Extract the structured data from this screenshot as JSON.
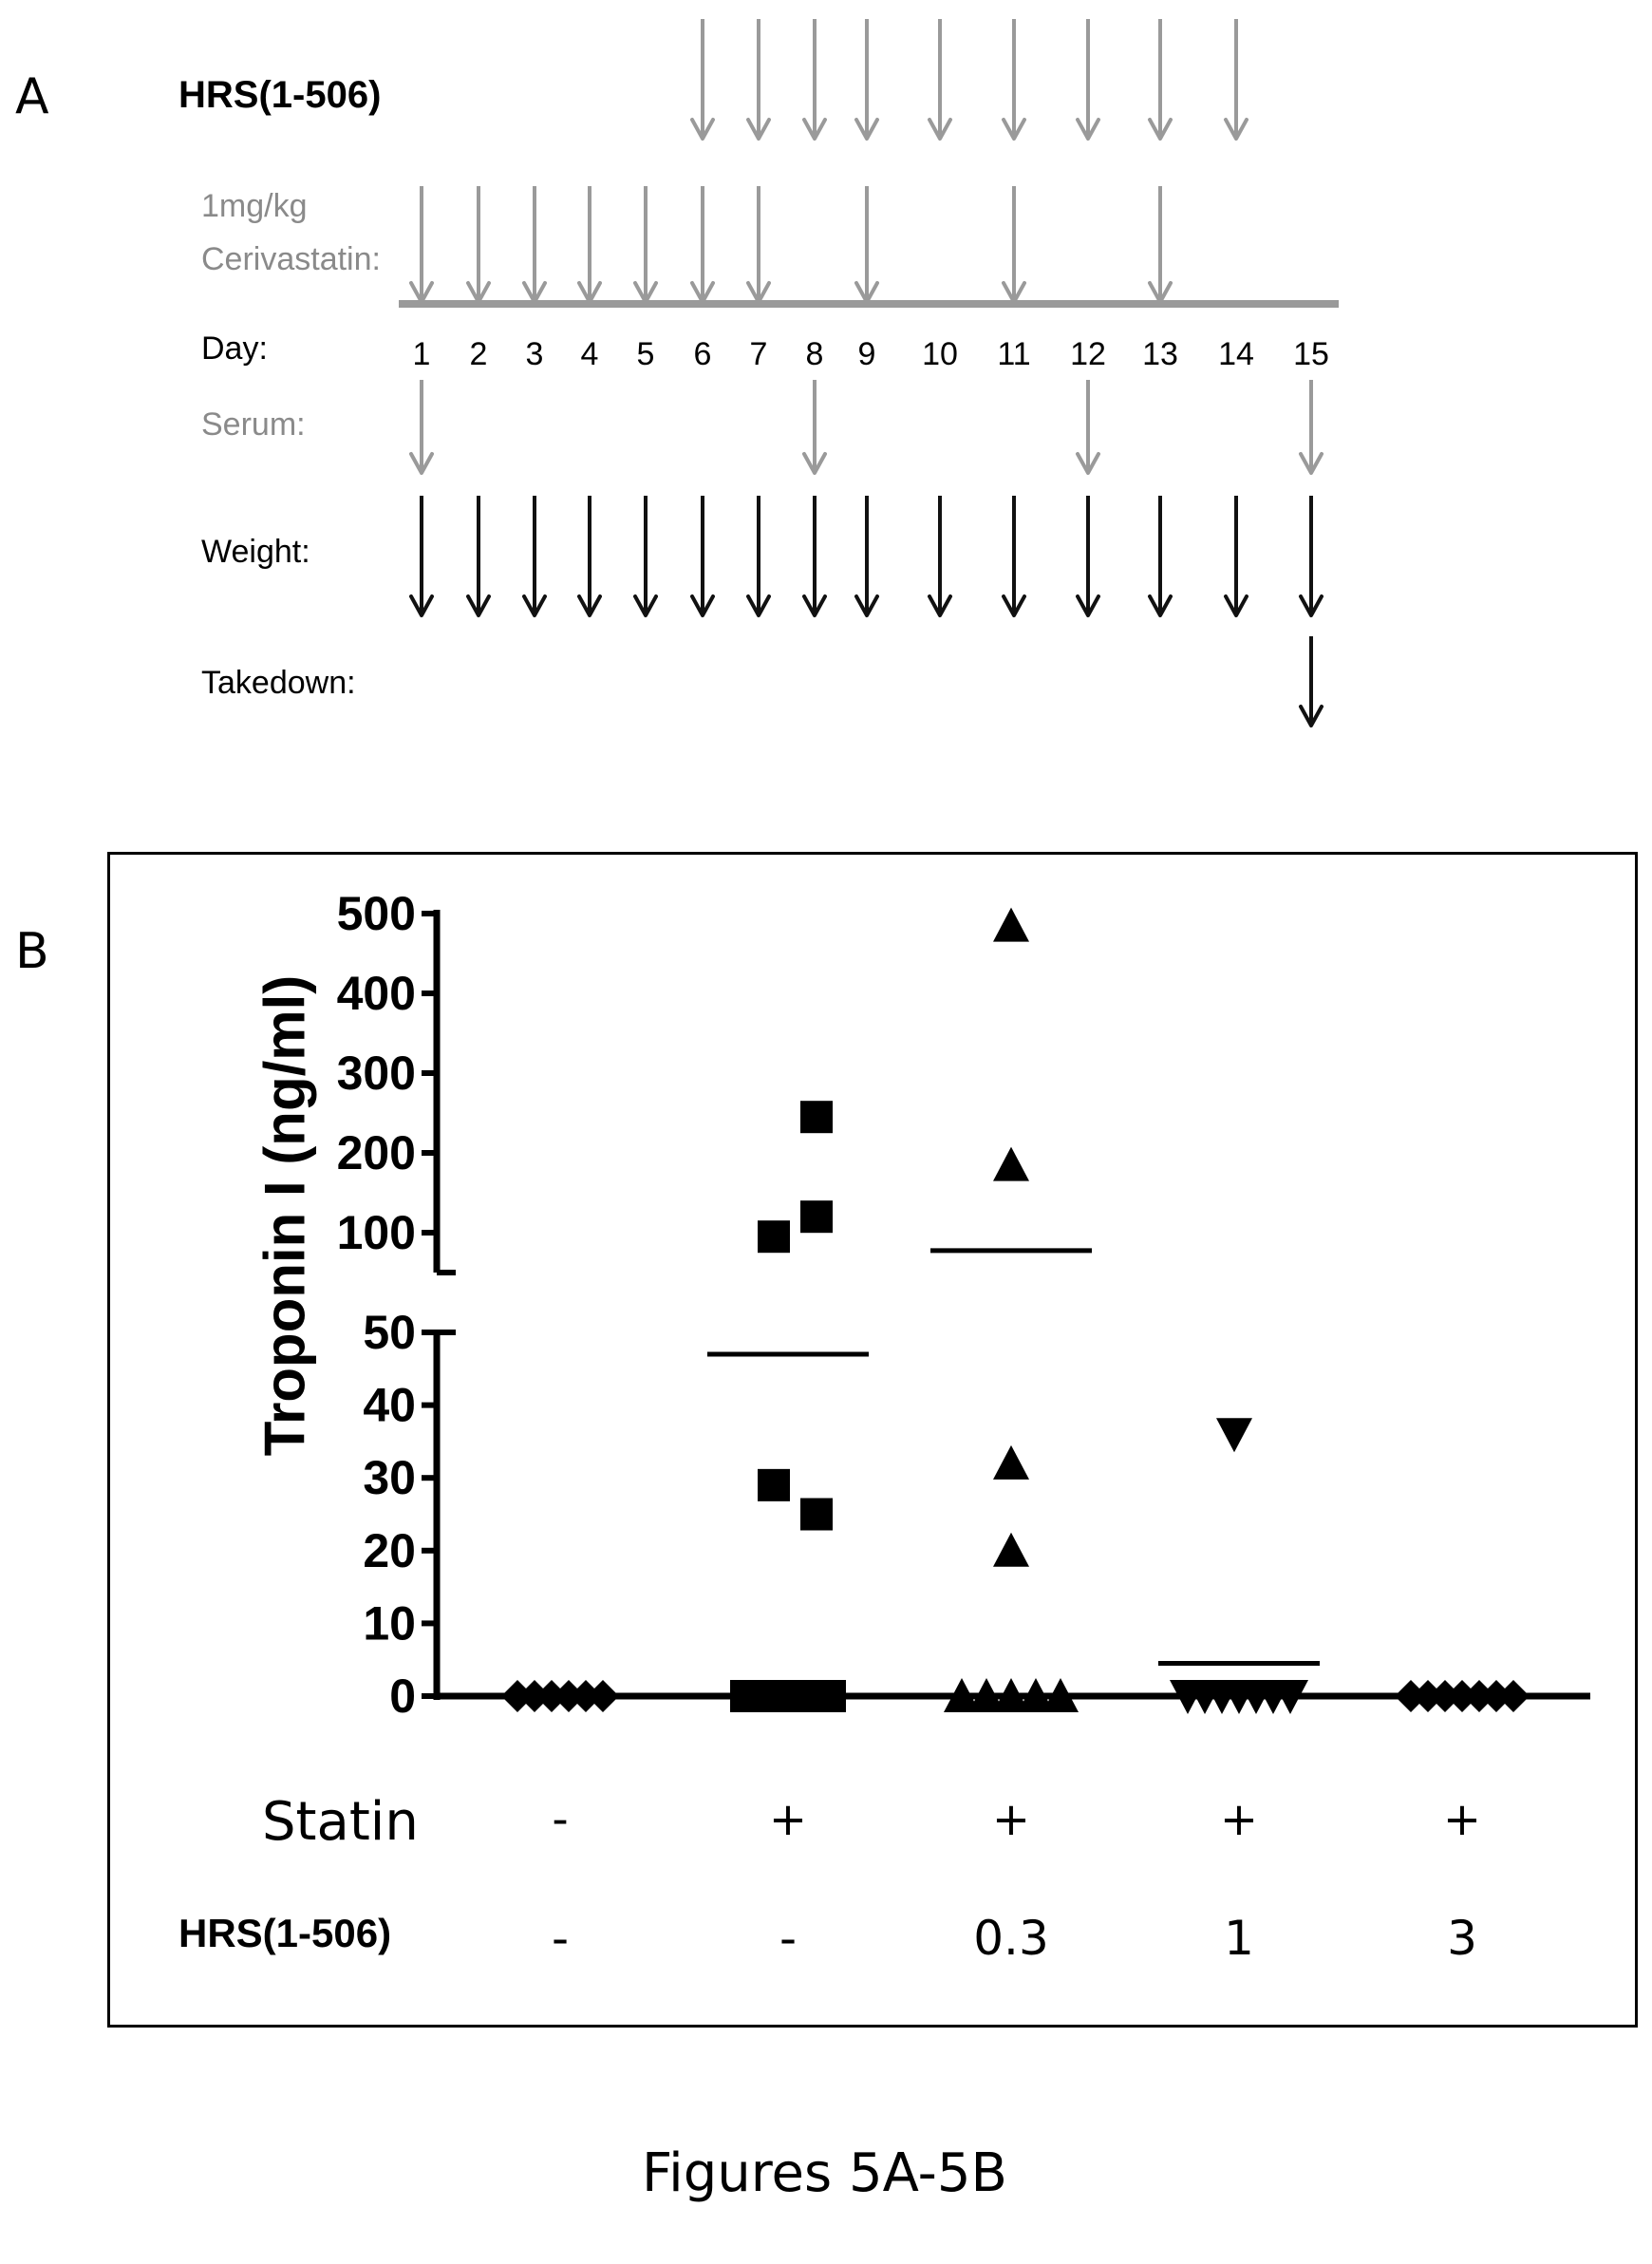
{
  "panel_a": {
    "letter": "A",
    "rows": {
      "hrs": "HRS(1-506)",
      "cerivastatin_line1": "1mg/kg",
      "cerivastatin_line2": "Cerivastatin:",
      "day": "Day:",
      "serum": "Serum:",
      "weight": "Weight:",
      "takedown": "Takedown:"
    },
    "days": [
      "1",
      "2",
      "3",
      "4",
      "5",
      "6",
      "7",
      "8",
      "9",
      "10",
      "11",
      "12",
      "13",
      "14",
      "15"
    ],
    "schedule": {
      "hrs_days": [
        6,
        7,
        8,
        9,
        10,
        11,
        12,
        13,
        14
      ],
      "cerivastatin_days": [
        1,
        2,
        3,
        4,
        5,
        6,
        7,
        9,
        11,
        13
      ],
      "serum_days": [
        1,
        8,
        12,
        15
      ],
      "weight_days": [
        1,
        2,
        3,
        4,
        5,
        6,
        7,
        8,
        9,
        10,
        11,
        12,
        13,
        14,
        15
      ],
      "takedown_days": [
        15
      ]
    },
    "colors": {
      "gray_arrow": "#9a9a9a",
      "black_arrow": "#111111",
      "gray_text": "#8a8a8a"
    }
  },
  "panel_b": {
    "letter": "B",
    "condition_rows": {
      "statin_label": "Statin",
      "hrs_label": "HRS(1-506)"
    },
    "statin_values": [
      "-",
      "+",
      "+",
      "+",
      "+"
    ],
    "hrs_values": [
      "-",
      "-",
      "0.3",
      "1",
      "3"
    ]
  },
  "chart_data": {
    "type": "scatter",
    "ylabel": "Troponin I (ng/ml)",
    "y_axis_segments": [
      {
        "range": [
          0,
          50
        ],
        "ticks": [
          0,
          10,
          20,
          30,
          40,
          50
        ]
      },
      {
        "range": [
          50,
          500
        ],
        "ticks": [
          100,
          200,
          300,
          400,
          500
        ]
      }
    ],
    "axis_break": true,
    "groups": [
      {
        "marker": "diamond",
        "values": [
          0,
          0,
          0,
          0,
          0,
          0
        ],
        "mean": null
      },
      {
        "marker": "square",
        "values": [
          245,
          120,
          98,
          29,
          25,
          0,
          0,
          0,
          0,
          0
        ],
        "mean": 47
      },
      {
        "marker": "triangle-up",
        "values": [
          485,
          185,
          32,
          20,
          0,
          0,
          0,
          0,
          0
        ],
        "mean": 91
      },
      {
        "marker": "triangle-down",
        "values": [
          36,
          0,
          0,
          0,
          0,
          0,
          0,
          0
        ],
        "mean": 4.5
      },
      {
        "marker": "diamond",
        "values": [
          0,
          0,
          0,
          0,
          0,
          0,
          0
        ],
        "mean": null
      }
    ]
  },
  "caption": "Figures 5A-5B"
}
